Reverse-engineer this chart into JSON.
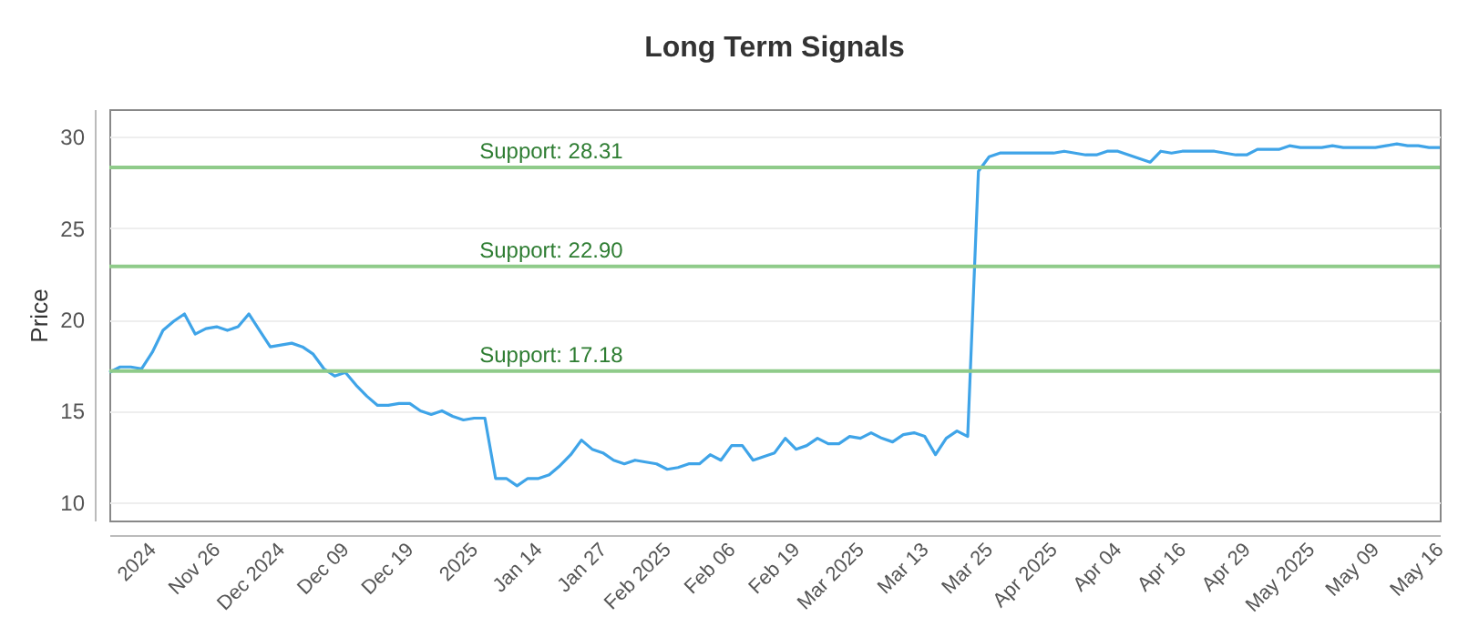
{
  "chart_data": {
    "type": "line",
    "title": "Long Term Signals",
    "ylabel": "Price",
    "categories": [
      null,
      null,
      null,
      null,
      "2024",
      null,
      null,
      null,
      null,
      null,
      "Nov 26",
      null,
      null,
      null,
      null,
      null,
      "Dec 2024",
      null,
      null,
      null,
      null,
      null,
      "Dec 09",
      null,
      null,
      null,
      null,
      null,
      "Dec 19",
      null,
      null,
      null,
      null,
      null,
      "2025",
      null,
      null,
      null,
      null,
      null,
      "Jan 14",
      null,
      null,
      null,
      null,
      null,
      "Jan 27",
      null,
      null,
      null,
      null,
      null,
      "Feb 2025",
      null,
      null,
      null,
      null,
      null,
      "Feb 06",
      null,
      null,
      null,
      null,
      null,
      "Feb 19",
      null,
      null,
      null,
      null,
      null,
      "Mar 2025",
      null,
      null,
      null,
      null,
      null,
      "Mar 13",
      null,
      null,
      null,
      null,
      null,
      "Mar 25",
      null,
      null,
      null,
      null,
      null,
      "Apr 2025",
      null,
      null,
      null,
      null,
      null,
      "Apr 04",
      null,
      null,
      null,
      null,
      null,
      "Apr 16",
      null,
      null,
      null,
      null,
      null,
      "Apr 29",
      null,
      null,
      null,
      null,
      null,
      "May 2025",
      null,
      null,
      null,
      null,
      null,
      "May 09",
      null,
      null,
      null,
      null,
      null,
      "May 16"
    ],
    "series": [
      {
        "color": "#3fa4e8",
        "values": [
          17.1,
          17.4,
          17.4,
          17.3,
          18.2,
          19.4,
          19.9,
          20.3,
          19.2,
          19.5,
          19.6,
          19.4,
          19.6,
          20.3,
          19.4,
          18.5,
          18.6,
          18.7,
          18.5,
          18.1,
          17.3,
          16.9,
          17.1,
          16.4,
          15.8,
          15.3,
          15.3,
          15.4,
          15.4,
          15.0,
          14.8,
          15.0,
          14.7,
          14.5,
          14.6,
          14.6,
          11.3,
          11.3,
          10.9,
          11.3,
          11.3,
          11.5,
          12.0,
          12.6,
          13.4,
          12.9,
          12.7,
          12.3,
          12.1,
          12.3,
          12.2,
          12.1,
          11.8,
          11.9,
          12.1,
          12.1,
          12.6,
          12.3,
          13.1,
          13.1,
          12.3,
          12.5,
          12.7,
          13.5,
          12.9,
          13.1,
          13.5,
          13.2,
          13.2,
          13.6,
          13.5,
          13.8,
          13.5,
          13.3,
          13.7,
          13.8,
          13.6,
          12.6,
          13.5,
          13.9,
          13.6,
          28.1,
          28.9,
          29.1,
          29.1,
          29.1,
          29.1,
          29.1,
          29.1,
          29.2,
          29.1,
          29.0,
          29.0,
          29.2,
          29.2,
          29.0,
          28.8,
          28.6,
          29.2,
          29.1,
          29.2,
          29.2,
          29.2,
          29.2,
          29.1,
          29.0,
          29.0,
          29.3,
          29.3,
          29.3,
          29.5,
          29.4,
          29.4,
          29.4,
          29.5,
          29.4,
          29.4,
          29.4,
          29.4,
          29.5,
          29.6,
          29.5,
          29.5,
          29.4,
          29.4
        ]
      }
    ],
    "ylim": [
      9,
      31.5
    ],
    "yticks": [
      10,
      15,
      20,
      25,
      30
    ],
    "grid": "y",
    "ref_lines": [
      {
        "axis": "y",
        "value": 28.31,
        "label": "Support: 28.31",
        "color": "#8fcb8a"
      },
      {
        "axis": "y",
        "value": 22.9,
        "label": "Support: 22.90",
        "color": "#8fcb8a"
      },
      {
        "axis": "y",
        "value": 17.18,
        "label": "Support: 17.18",
        "color": "#8fcb8a"
      }
    ]
  }
}
